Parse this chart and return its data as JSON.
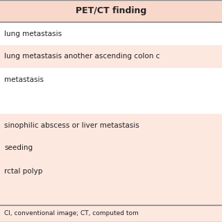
{
  "title": "PET/CT finding",
  "header_bg": "#f9d8cc",
  "row_colors": [
    "#ffffff",
    "#fde8e0",
    "#ffffff",
    "#ffffff",
    "#fde8e0",
    "#fde8e0",
    "#fde8e0",
    "#fde8e0"
  ],
  "rows": [
    "lung metastasis",
    "lung metastasis another ascending colon c",
    "metastasis",
    "",
    "sinophilic abscess or liver metastasis",
    "seeding",
    "rctal polyp",
    ""
  ],
  "footer": "CI, conventional image; CT, computed tom",
  "footer_bg": "#fde8e0",
  "border_color": "#888888",
  "text_color": "#222222",
  "font_size": 7.5,
  "header_font_size": 9,
  "footer_font_size": 6.5,
  "fig_bg": "#ffffff"
}
